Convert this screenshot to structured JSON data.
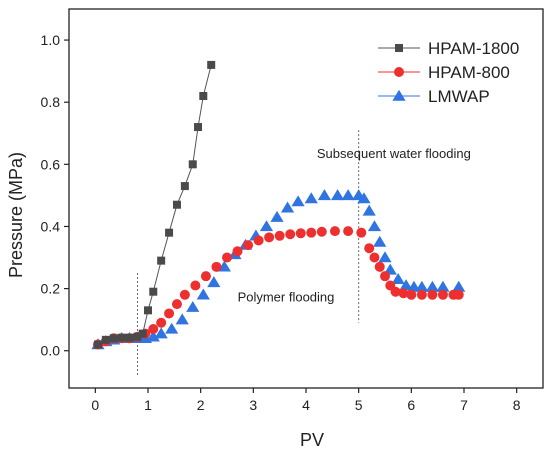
{
  "chart_data": {
    "type": "scatter",
    "xlabel": "PV",
    "ylabel": "Pressure (MPa)",
    "xlim": [
      -0.5,
      8.5
    ],
    "ylim": [
      -0.12,
      1.1
    ],
    "xticks": [
      0,
      1,
      2,
      3,
      4,
      5,
      6,
      7,
      8
    ],
    "yticks": [
      0.0,
      0.2,
      0.4,
      0.6,
      0.8,
      1.0
    ],
    "xtick_labels": [
      "0",
      "1",
      "2",
      "3",
      "4",
      "5",
      "6",
      "7",
      "8"
    ],
    "ytick_labels": [
      "0.0",
      "0.2",
      "0.4",
      "0.6",
      "0.8",
      "1.0"
    ],
    "grid": false,
    "legend": "top-right",
    "series": [
      {
        "name": "HPAM-1800",
        "marker": "square",
        "color": "#4a4a4a",
        "line": true,
        "x": [
          0.05,
          0.2,
          0.35,
          0.5,
          0.65,
          0.8,
          0.9,
          1.0,
          1.1,
          1.25,
          1.4,
          1.55,
          1.7,
          1.85,
          1.95,
          2.05,
          2.2
        ],
        "y": [
          0.02,
          0.035,
          0.04,
          0.042,
          0.042,
          0.045,
          0.055,
          0.13,
          0.19,
          0.29,
          0.38,
          0.47,
          0.53,
          0.6,
          0.72,
          0.82,
          0.92
        ]
      },
      {
        "name": "HPAM-800",
        "marker": "circle",
        "color": "#ee2f2f",
        "line": false,
        "x": [
          0.05,
          0.2,
          0.35,
          0.5,
          0.65,
          0.8,
          0.95,
          1.1,
          1.25,
          1.4,
          1.55,
          1.7,
          1.9,
          2.1,
          2.3,
          2.5,
          2.7,
          2.9,
          3.1,
          3.3,
          3.5,
          3.7,
          3.9,
          4.1,
          4.3,
          4.55,
          4.8,
          5.05,
          5.2,
          5.3,
          5.4,
          5.5,
          5.6,
          5.7,
          5.85,
          6.0,
          6.2,
          6.4,
          6.6,
          6.8,
          6.9
        ],
        "y": [
          0.02,
          0.03,
          0.04,
          0.04,
          0.04,
          0.045,
          0.055,
          0.07,
          0.09,
          0.12,
          0.15,
          0.18,
          0.21,
          0.24,
          0.27,
          0.3,
          0.32,
          0.34,
          0.355,
          0.365,
          0.37,
          0.375,
          0.378,
          0.38,
          0.383,
          0.385,
          0.385,
          0.38,
          0.33,
          0.3,
          0.27,
          0.24,
          0.21,
          0.19,
          0.185,
          0.18,
          0.18,
          0.18,
          0.18,
          0.18,
          0.18
        ]
      },
      {
        "name": "LMWAP",
        "marker": "triangle",
        "color": "#2f74e0",
        "line": false,
        "x": [
          0.05,
          0.2,
          0.35,
          0.5,
          0.65,
          0.8,
          0.95,
          1.1,
          1.25,
          1.45,
          1.65,
          1.85,
          2.05,
          2.25,
          2.45,
          2.65,
          2.85,
          3.05,
          3.25,
          3.45,
          3.65,
          3.85,
          4.1,
          4.35,
          4.6,
          4.8,
          5.0,
          5.1,
          5.2,
          5.3,
          5.4,
          5.5,
          5.6,
          5.75,
          5.9,
          6.05,
          6.2,
          6.4,
          6.6,
          6.9
        ],
        "y": [
          0.02,
          0.03,
          0.035,
          0.04,
          0.04,
          0.04,
          0.04,
          0.045,
          0.055,
          0.07,
          0.1,
          0.14,
          0.18,
          0.22,
          0.27,
          0.31,
          0.34,
          0.37,
          0.4,
          0.43,
          0.46,
          0.48,
          0.49,
          0.5,
          0.5,
          0.5,
          0.5,
          0.49,
          0.45,
          0.4,
          0.35,
          0.3,
          0.26,
          0.23,
          0.21,
          0.205,
          0.205,
          0.205,
          0.205,
          0.205
        ]
      }
    ],
    "vlines": [
      0.8,
      5.0
    ],
    "annotations": [
      {
        "text": "Polymer flooding",
        "x": 3.62,
        "y": 0.158
      },
      {
        "text": "Subsequent water flooding",
        "x": 7.13,
        "y": 0.62
      }
    ]
  }
}
